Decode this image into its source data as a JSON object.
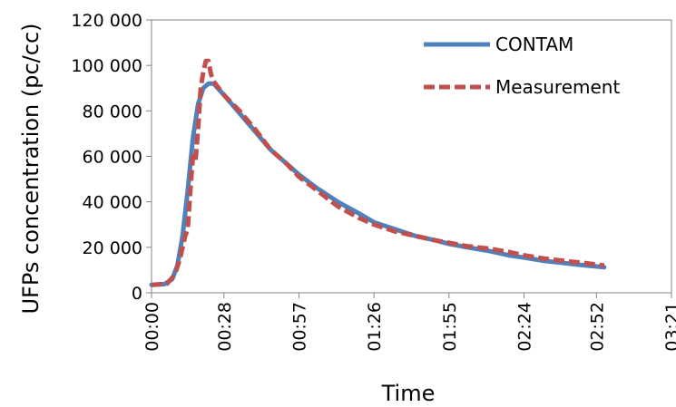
{
  "chart_data": {
    "type": "line",
    "xlabel": "Time",
    "ylabel": "UFPs concentration (pc/cc)",
    "xlim": [
      0,
      201
    ],
    "ylim": [
      0,
      120000
    ],
    "x_ticks": [
      0,
      28,
      57,
      86,
      115,
      144,
      172,
      201
    ],
    "x_tick_labels": [
      "00:00",
      "00:28",
      "00:57",
      "01:26",
      "01:55",
      "02:24",
      "02:52",
      "03:21"
    ],
    "y_ticks": [
      0,
      20000,
      40000,
      60000,
      80000,
      100000,
      120000
    ],
    "y_tick_labels": [
      "0",
      "20 000",
      "40 000",
      "60 000",
      "80 000",
      "100 000",
      "120 000"
    ],
    "legend_position": "top-right",
    "grid": false,
    "series": [
      {
        "name": "CONTAM",
        "color": "#4f81bd",
        "style": "solid",
        "points": [
          [
            0,
            3500
          ],
          [
            5,
            3800
          ],
          [
            8,
            6000
          ],
          [
            10,
            12000
          ],
          [
            12,
            25000
          ],
          [
            14,
            45000
          ],
          [
            16,
            68000
          ],
          [
            18,
            83000
          ],
          [
            20,
            90000
          ],
          [
            22,
            92000
          ],
          [
            24,
            92000
          ],
          [
            28,
            87000
          ],
          [
            34,
            79000
          ],
          [
            40,
            71000
          ],
          [
            46,
            63000
          ],
          [
            52,
            57000
          ],
          [
            57,
            52000
          ],
          [
            64,
            46000
          ],
          [
            72,
            40000
          ],
          [
            80,
            35000
          ],
          [
            86,
            31000
          ],
          [
            94,
            28000
          ],
          [
            102,
            25000
          ],
          [
            110,
            23000
          ],
          [
            115,
            21500
          ],
          [
            122,
            20000
          ],
          [
            130,
            18500
          ],
          [
            138,
            16500
          ],
          [
            144,
            15500
          ],
          [
            152,
            14000
          ],
          [
            160,
            13000
          ],
          [
            168,
            12000
          ],
          [
            175,
            11300
          ]
        ]
      },
      {
        "name": "Measurement",
        "color": "#c0504d",
        "style": "dashed",
        "points": [
          [
            0,
            3500
          ],
          [
            6,
            4000
          ],
          [
            9,
            8000
          ],
          [
            11,
            15000
          ],
          [
            13,
            25000
          ],
          [
            14,
            28000
          ],
          [
            15,
            45000
          ],
          [
            16,
            60000
          ],
          [
            17,
            58000
          ],
          [
            18,
            72000
          ],
          [
            19,
            90000
          ],
          [
            20,
            97000
          ],
          [
            21,
            102000
          ],
          [
            22,
            102000
          ],
          [
            23,
            96000
          ],
          [
            24,
            93000
          ],
          [
            26,
            90000
          ],
          [
            28,
            87000
          ],
          [
            34,
            80000
          ],
          [
            40,
            72000
          ],
          [
            46,
            63000
          ],
          [
            52,
            57000
          ],
          [
            57,
            51000
          ],
          [
            64,
            45000
          ],
          [
            72,
            38000
          ],
          [
            80,
            33000
          ],
          [
            86,
            30000
          ],
          [
            94,
            27000
          ],
          [
            102,
            25000
          ],
          [
            110,
            23000
          ],
          [
            115,
            22000
          ],
          [
            122,
            20500
          ],
          [
            130,
            19500
          ],
          [
            138,
            18000
          ],
          [
            144,
            16500
          ],
          [
            152,
            15000
          ],
          [
            160,
            14000
          ],
          [
            168,
            13000
          ],
          [
            175,
            12000
          ]
        ]
      }
    ]
  }
}
